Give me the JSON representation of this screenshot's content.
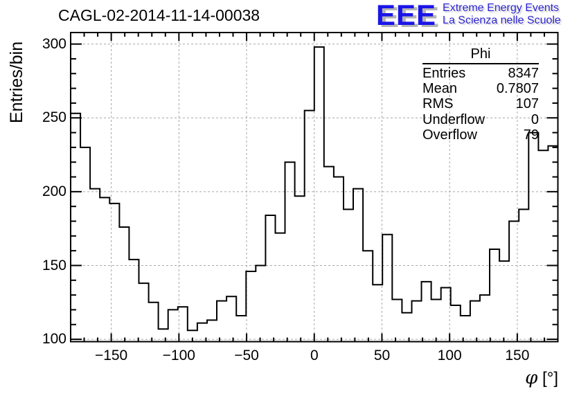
{
  "header": {
    "title": "CAGL-02-2014-11-14-00038"
  },
  "logo": {
    "acronym": "EEE",
    "line1": "Extreme Energy Events",
    "line2": "La Scienza nelle Scuole",
    "acronym_color": "#1b15e8",
    "text_color": "#2d24d1",
    "shadow_color": "#b5b5b5"
  },
  "axes": {
    "y": {
      "title": "Entries/bin"
    },
    "x": {
      "label_symbol": "φ",
      "label_unit": " [°]"
    }
  },
  "stats": {
    "title": "Phi",
    "rows": [
      {
        "label": "Entries",
        "value": "8347"
      },
      {
        "label": "Mean",
        "value": "0.7807"
      },
      {
        "label": "RMS",
        "value": "107"
      },
      {
        "label": "Underflow",
        "value": "0"
      },
      {
        "label": "Overflow",
        "value": "79"
      }
    ]
  },
  "chart_data": {
    "type": "histogram-step",
    "title": "CAGL-02-2014-11-14-00038",
    "xlabel": "phi [deg]",
    "ylabel": "Entries/bin",
    "xlim": [
      -180,
      180
    ],
    "ylim": [
      98.4,
      307.8
    ],
    "n_bins": 50,
    "bin_start": -180,
    "bin_width": 7.2,
    "values": [
      253,
      230,
      202,
      196,
      192,
      176,
      154,
      138,
      125,
      107,
      120,
      122,
      106,
      111,
      113,
      126,
      129,
      116,
      146,
      150,
      184,
      172,
      220,
      197,
      255,
      298,
      217,
      210,
      188,
      202,
      160,
      137,
      171,
      127,
      118,
      126,
      139,
      127,
      135,
      123,
      116,
      126,
      130,
      161,
      153,
      180,
      188,
      240,
      228,
      231
    ],
    "entries": 8347,
    "mean": 0.7807,
    "rms": 107,
    "underflow": 0,
    "overflow": 79,
    "x_ticks": [
      {
        "v": -150,
        "label": "−150"
      },
      {
        "v": -100,
        "label": "−100"
      },
      {
        "v": -50,
        "label": "−50"
      },
      {
        "v": 0,
        "label": "0"
      },
      {
        "v": 50,
        "label": "50"
      },
      {
        "v": 100,
        "label": "100"
      },
      {
        "v": 150,
        "label": "150"
      }
    ],
    "y_ticks": [
      {
        "v": 100,
        "label": "100"
      },
      {
        "v": 150,
        "label": "150"
      },
      {
        "v": 200,
        "label": "200"
      },
      {
        "v": 250,
        "label": "250"
      },
      {
        "v": 300,
        "label": "300"
      }
    ],
    "minor_tick_step_x": 10,
    "minor_tick_step_y": 10,
    "grid": "dashed-on-major-ticks",
    "legend_position": "none",
    "line_color": "#000000",
    "grid_color": "#a6a6a6",
    "background_color": "#ffffff"
  }
}
